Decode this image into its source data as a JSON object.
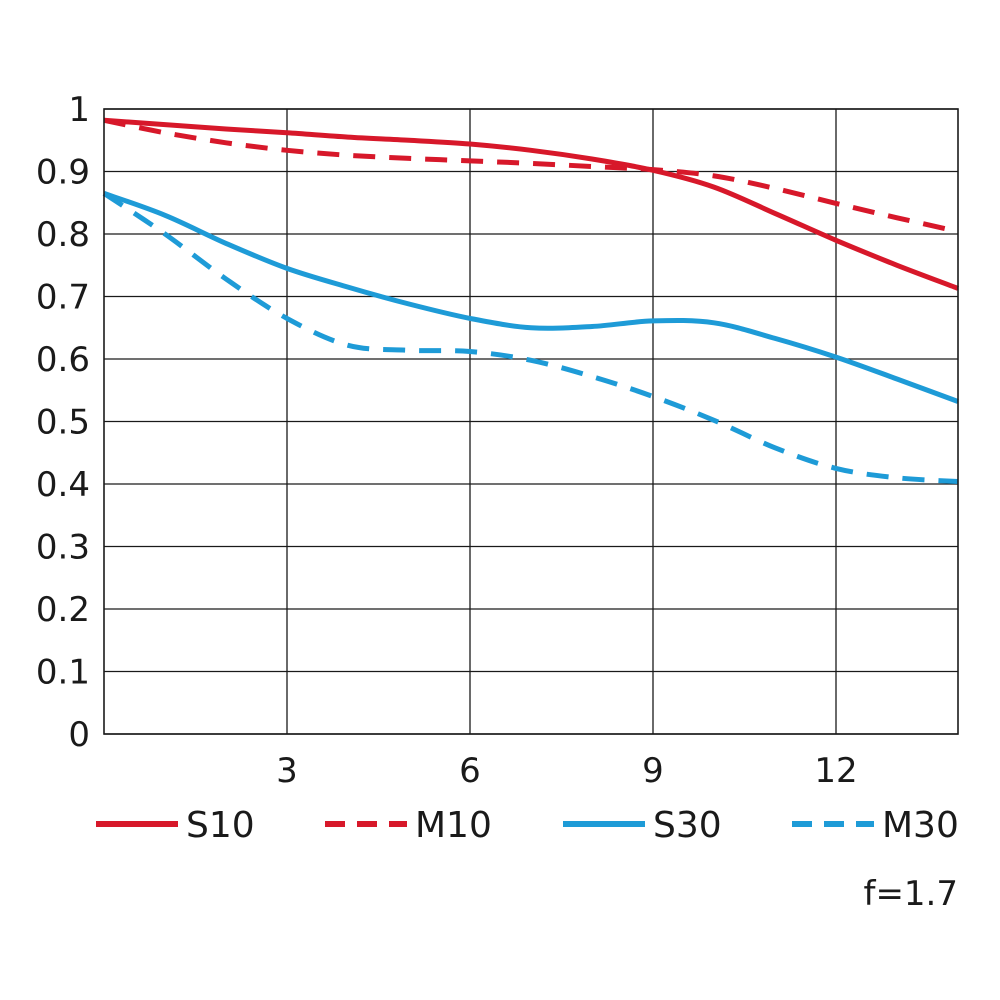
{
  "chart_data": {
    "type": "line",
    "title": "",
    "xlabel": "",
    "ylabel": "",
    "xlim": [
      0,
      14
    ],
    "ylim": [
      0,
      1
    ],
    "x_ticks": [
      3,
      6,
      9,
      12
    ],
    "y_ticks": [
      0,
      0.1,
      0.2,
      0.3,
      0.4,
      0.5,
      0.6,
      0.7,
      0.8,
      0.9,
      1
    ],
    "x_tick_labels": [
      "3",
      "6",
      "9",
      "12"
    ],
    "y_tick_labels": [
      "0",
      "0.1",
      "0.2",
      "0.3",
      "0.4",
      "0.5",
      "0.6",
      "0.7",
      "0.8",
      "0.9",
      "1"
    ],
    "grid": true,
    "legend_position": "bottom",
    "annotation": "f=1.7",
    "series": [
      {
        "name": "S10",
        "color": "#d7182a",
        "dash": "solid",
        "x": [
          0,
          1,
          2,
          3,
          4,
          5,
          6,
          7,
          8,
          9,
          10,
          11,
          12,
          13,
          14
        ],
        "y": [
          0.982,
          0.975,
          0.968,
          0.962,
          0.955,
          0.95,
          0.944,
          0.934,
          0.92,
          0.902,
          0.875,
          0.833,
          0.79,
          0.75,
          0.713
        ]
      },
      {
        "name": "M10",
        "color": "#d7182a",
        "dash": "dashed",
        "x": [
          0,
          1,
          2,
          3,
          4,
          5,
          6,
          7,
          8,
          9,
          10,
          11,
          12,
          13,
          14
        ],
        "y": [
          0.982,
          0.962,
          0.946,
          0.934,
          0.926,
          0.921,
          0.917,
          0.913,
          0.908,
          0.903,
          0.893,
          0.873,
          0.849,
          0.826,
          0.804
        ]
      },
      {
        "name": "S30",
        "color": "#1e9bd7",
        "dash": "solid",
        "x": [
          0,
          1,
          2,
          3,
          4,
          5,
          6,
          7,
          8,
          9,
          10,
          11,
          12,
          13,
          14
        ],
        "y": [
          0.865,
          0.83,
          0.785,
          0.745,
          0.715,
          0.688,
          0.665,
          0.65,
          0.652,
          0.661,
          0.658,
          0.633,
          0.603,
          0.568,
          0.532
        ]
      },
      {
        "name": "M30",
        "color": "#1e9bd7",
        "dash": "dashed",
        "x": [
          0,
          1,
          2,
          3,
          4,
          5,
          6,
          7,
          8,
          9,
          10,
          11,
          12,
          13,
          14
        ],
        "y": [
          0.865,
          0.8,
          0.728,
          0.665,
          0.622,
          0.614,
          0.612,
          0.598,
          0.572,
          0.54,
          0.502,
          0.458,
          0.425,
          0.41,
          0.404
        ]
      }
    ]
  }
}
